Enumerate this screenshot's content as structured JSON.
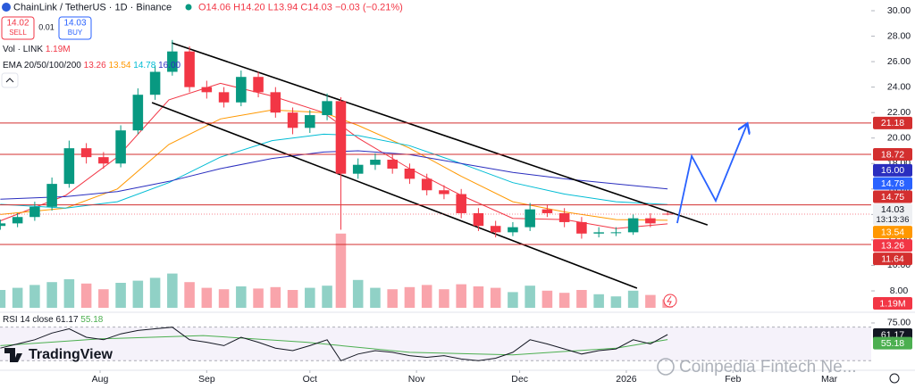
{
  "chart_data": {
    "type": "candlestick",
    "title": "ChainLink / TetherUS · 1D · Binance",
    "ohlc_legend": [
      "O14.06",
      "H14.20",
      "L13.94",
      "C14.03",
      "−0.03 (−0.21%)"
    ],
    "sell": {
      "price": "14.02",
      "label": "SELL"
    },
    "spread": "0.01",
    "buy": {
      "price": "14.03",
      "label": "BUY"
    },
    "volume_legend": "Vol · LINK",
    "volume_label": "1.19M",
    "ema_legend": {
      "label": "EMA 20/50/100/200",
      "values": [
        "13.26",
        "13.54",
        "14.78",
        "16.00"
      ]
    },
    "x": [
      -29,
      -24,
      -19,
      -14,
      -9,
      -4,
      1,
      6,
      11,
      16,
      21,
      26,
      31,
      36,
      41,
      46,
      51,
      56,
      61,
      66,
      70,
      75,
      80,
      85,
      90,
      95,
      100,
      105,
      110,
      115,
      120,
      125,
      130,
      135,
      140,
      145,
      150,
      155,
      160,
      165
    ],
    "open": [
      13.1,
      13.3,
      13.8,
      14.6,
      16.4,
      19.2,
      18.5,
      18.0,
      20.6,
      23.4,
      25.2,
      26.8,
      24.0,
      23.6,
      22.8,
      24.8,
      23.6,
      22.0,
      20.8,
      21.8,
      22.9,
      17.2,
      17.9,
      18.3,
      17.6,
      16.8,
      15.9,
      15.6,
      14.1,
      13.1,
      12.6,
      13.0,
      14.4,
      14.1,
      13.4,
      12.5,
      12.6,
      12.6,
      13.7,
      14.06
    ],
    "high": [
      13.6,
      14.1,
      15.0,
      16.9,
      19.8,
      19.6,
      18.9,
      21.0,
      23.9,
      25.7,
      27.7,
      27.2,
      24.5,
      24.0,
      25.3,
      25.2,
      24.0,
      22.4,
      22.2,
      23.5,
      23.2,
      18.4,
      18.8,
      18.7,
      18.0,
      17.2,
      16.3,
      16.0,
      14.5,
      13.5,
      13.4,
      14.9,
      14.8,
      14.5,
      13.8,
      13.0,
      13.0,
      14.0,
      14.1,
      14.2
    ],
    "low": [
      12.8,
      13.0,
      13.5,
      14.3,
      16.1,
      18.0,
      17.6,
      17.7,
      20.3,
      23.0,
      24.9,
      23.6,
      23.1,
      22.4,
      22.5,
      23.2,
      21.6,
      20.3,
      20.4,
      21.4,
      12.8,
      16.8,
      17.5,
      17.2,
      16.4,
      15.5,
      15.2,
      13.7,
      12.7,
      12.2,
      12.3,
      12.7,
      13.8,
      13.0,
      12.1,
      12.2,
      12.3,
      12.4,
      13.0,
      13.94
    ],
    "close": [
      13.3,
      13.8,
      14.6,
      16.4,
      19.2,
      18.5,
      18.0,
      20.6,
      23.4,
      25.2,
      26.8,
      24.0,
      23.6,
      22.8,
      24.8,
      23.6,
      22.0,
      20.8,
      21.8,
      22.9,
      17.2,
      17.9,
      18.3,
      17.6,
      16.8,
      15.9,
      15.6,
      14.1,
      13.1,
      12.6,
      13.0,
      14.4,
      14.1,
      13.4,
      12.5,
      12.6,
      12.6,
      13.7,
      13.3,
      14.03
    ],
    "volume": [
      2.5,
      2.8,
      3.2,
      3.6,
      4.0,
      3.4,
      2.6,
      3.5,
      3.8,
      4.2,
      4.8,
      3.6,
      2.8,
      2.6,
      3.0,
      2.7,
      2.9,
      2.5,
      2.8,
      3.1,
      10.4,
      3.9,
      2.8,
      2.6,
      2.9,
      3.2,
      2.6,
      3.3,
      3.0,
      2.8,
      2.2,
      3.1,
      2.4,
      2.1,
      2.5,
      1.9,
      1.6,
      2.4,
      1.8,
      1.19
    ],
    "up_color": "#089981",
    "down_color": "#f23645",
    "ema": [
      {
        "color": "#f23645",
        "x": [
          -29,
          -10,
          5,
          20,
          35,
          50,
          65,
          75,
          90,
          105,
          120,
          135,
          150,
          165
        ],
        "values": [
          13.5,
          15.5,
          18.5,
          23.0,
          24.3,
          23.3,
          22.0,
          20.0,
          17.6,
          15.5,
          13.7,
          13.6,
          12.9,
          13.26
        ]
      },
      {
        "color": "#ff9800",
        "x": [
          -29,
          -10,
          5,
          20,
          35,
          50,
          65,
          75,
          90,
          105,
          120,
          135,
          150,
          165
        ],
        "values": [
          14.0,
          14.5,
          16.0,
          19.5,
          21.5,
          22.2,
          22.0,
          21.0,
          19.2,
          17.0,
          15.0,
          14.2,
          13.6,
          13.54
        ]
      },
      {
        "color": "#00bcd4",
        "x": [
          -29,
          -10,
          5,
          20,
          35,
          50,
          65,
          75,
          90,
          105,
          120,
          135,
          150,
          165
        ],
        "values": [
          14.8,
          14.5,
          15.0,
          16.5,
          18.5,
          19.8,
          20.3,
          20.2,
          19.4,
          18.0,
          16.5,
          15.6,
          15.0,
          14.78
        ]
      },
      {
        "color": "#2a2ebf",
        "x": [
          -29,
          -10,
          5,
          20,
          35,
          50,
          65,
          75,
          90,
          105,
          120,
          135,
          150,
          165
        ],
        "values": [
          15.2,
          15.4,
          15.8,
          16.6,
          17.6,
          18.4,
          18.9,
          19.0,
          18.7,
          18.0,
          17.3,
          16.8,
          16.4,
          16.0
        ]
      }
    ],
    "trendlines": [
      {
        "color": "#000000",
        "x": [
          20.8,
          176.6
        ],
        "values": [
          27.48,
          13.18
        ]
      },
      {
        "color": "#000000",
        "x": [
          15.1,
          156.1
        ],
        "values": [
          22.78,
          8.21
        ]
      }
    ],
    "projection": {
      "color": "#2962ff",
      "x": [
        167.8,
        172,
        179,
        188
      ],
      "values": [
        13.32,
        18.58,
        15.07,
        21.03
      ]
    },
    "levels": [
      {
        "value": 21.18,
        "label": "21.18"
      },
      {
        "value": 18.72,
        "label": "18.72"
      },
      {
        "value": 14.75,
        "label": "14.75"
      },
      {
        "value": 11.64,
        "label": "11.64"
      }
    ],
    "level_color": "#d32f2f",
    "price_tags": [
      {
        "value": 16.0,
        "label": "16.00",
        "color": "#2a2ebf"
      },
      {
        "value": 14.78,
        "label": "14.78",
        "color": "#2962ff"
      },
      {
        "value": 14.03,
        "label": "14.03",
        "time": "13:13:36",
        "color": "#eef0f3"
      },
      {
        "value": 13.54,
        "label": "13.54",
        "color": "#ff9800"
      },
      {
        "value": 13.26,
        "label": "13.26",
        "color": "#f23645"
      }
    ],
    "xlim": [
      -29.1,
      224.2
    ],
    "ylim": [
      6.67,
      30.84
    ],
    "xticks": [
      {
        "value": 0,
        "label": "Aug"
      },
      {
        "value": 31,
        "label": "Sep"
      },
      {
        "value": 61,
        "label": "Oct"
      },
      {
        "value": 92,
        "label": "Nov"
      },
      {
        "value": 122,
        "label": "Dec"
      },
      {
        "value": 153,
        "label": "2026"
      },
      {
        "value": 184,
        "label": "Feb"
      },
      {
        "value": 212,
        "label": "Mar"
      }
    ],
    "yticks": [
      {
        "value": 8,
        "label": "8.00"
      },
      {
        "value": 10,
        "label": "10.00"
      },
      {
        "value": 12,
        "label": "12.00"
      },
      {
        "value": 14,
        "label": "14.00"
      },
      {
        "value": 16,
        "label": "16.00"
      },
      {
        "value": 18,
        "label": "18.00"
      },
      {
        "value": 20,
        "label": "20.00"
      },
      {
        "value": 22,
        "label": "22.00"
      },
      {
        "value": 24,
        "label": "24.00"
      },
      {
        "value": 26,
        "label": "26.00"
      },
      {
        "value": 28,
        "label": "28.00"
      },
      {
        "value": 30,
        "label": "30.00"
      }
    ],
    "rsi": {
      "label": "RSI 14 close",
      "values": [
        45,
        50,
        55,
        63,
        68,
        58,
        55,
        62,
        66,
        68,
        70,
        55,
        52,
        48,
        58,
        52,
        45,
        42,
        48,
        55,
        30,
        38,
        42,
        40,
        36,
        34,
        36,
        32,
        30,
        33,
        40,
        55,
        50,
        44,
        38,
        42,
        44,
        55,
        50,
        61.17
      ],
      "value_label": "61.17",
      "color": "#131722",
      "ma": {
        "color": "#4caf50",
        "x": [
          -29,
          0,
          30,
          60,
          90,
          120,
          150,
          165
        ],
        "values": [
          48,
          56,
          60,
          52,
          40,
          37,
          45,
          55.18
        ],
        "value_label": "55.18"
      },
      "bands": [
        30,
        70
      ],
      "ylim": [
        18.6,
        85.6
      ],
      "yticks": [
        {
          "value": 75,
          "label": "75.00"
        }
      ]
    },
    "logo": "TradingView",
    "watermark": "Coinpedia Fintech Ne..."
  }
}
